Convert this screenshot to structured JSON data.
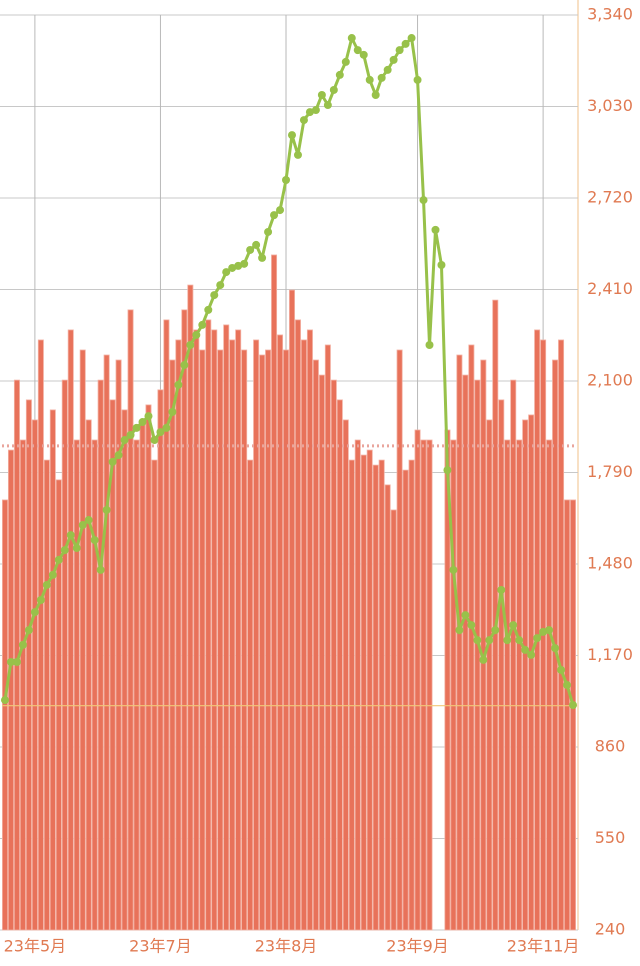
{
  "chart_data": {
    "type": "bar",
    "categories": [
      null,
      null,
      null,
      null,
      null,
      "23年5月",
      null,
      null,
      null,
      null,
      null,
      null,
      null,
      null,
      null,
      null,
      null,
      null,
      null,
      null,
      null,
      null,
      null,
      null,
      null,
      null,
      "23年7月",
      null,
      null,
      null,
      null,
      null,
      null,
      null,
      null,
      null,
      null,
      null,
      null,
      null,
      null,
      null,
      null,
      null,
      null,
      null,
      null,
      "23年8月",
      null,
      null,
      null,
      null,
      null,
      null,
      null,
      null,
      null,
      null,
      null,
      null,
      null,
      null,
      null,
      null,
      null,
      null,
      null,
      null,
      null,
      "23年9月",
      null,
      null,
      null,
      null,
      null,
      null,
      null,
      null,
      null,
      null,
      null,
      null,
      null,
      null,
      null,
      null,
      null,
      null,
      null,
      null,
      "23年11月",
      null,
      null,
      null,
      null,
      null
    ],
    "series": [
      {
        "type": "bar",
        "color": "#e8725a",
        "values": [
          1697,
          1866,
          2103,
          1900,
          2036,
          1968,
          2239,
          1832,
          2002,
          1765,
          2103,
          2273,
          1900,
          2205,
          1968,
          1900,
          2103,
          2188,
          2036,
          2171,
          2002,
          2341,
          1900,
          1968,
          2019,
          1832,
          2070,
          2307,
          2171,
          2239,
          2341,
          2425,
          2273,
          2205,
          2307,
          2273,
          2205,
          2290,
          2239,
          2273,
          2205,
          1832,
          2239,
          2188,
          2205,
          2527,
          2256,
          2205,
          2408,
          2307,
          2239,
          2273,
          2171,
          2120,
          2222,
          2103,
          2036,
          1968,
          1832,
          1900,
          1849,
          1866,
          1815,
          1832,
          1748,
          1663,
          2205,
          1798,
          1832,
          1934,
          1900,
          1900,
          null,
          null,
          1934,
          1900,
          2188,
          2120,
          2222,
          2103,
          2171,
          1968,
          2374,
          2036,
          1900,
          2103,
          1900,
          1968,
          1985,
          2273,
          2239,
          1900,
          2171,
          2239,
          1697,
          1697
        ]
      },
      {
        "type": "line",
        "color": "#98c14a",
        "values": [
          1019,
          1148,
          1148,
          1206,
          1256,
          1317,
          1358,
          1409,
          1443,
          1494,
          1527,
          1578,
          1534,
          1612,
          1629,
          1561,
          1460,
          1663,
          1826,
          1849,
          1900,
          1917,
          1941,
          1961,
          1981,
          1900,
          1927,
          1941,
          1995,
          2087,
          2154,
          2222,
          2256,
          2290,
          2341,
          2391,
          2425,
          2469,
          2483,
          2490,
          2497,
          2544,
          2561,
          2517,
          2605,
          2662,
          2679,
          2781,
          2933,
          2866,
          2984,
          3011,
          3018,
          3069,
          3035,
          3086,
          3137,
          3181,
          3262,
          3221,
          3205,
          3120,
          3069,
          3127,
          3154,
          3188,
          3221,
          3242,
          3262,
          3120,
          2713,
          2222,
          2612,
          2493,
          1798,
          1460,
          1256,
          1307,
          1273,
          1222,
          1155,
          1222,
          1256,
          1392,
          1222,
          1273,
          1222,
          1189,
          1172,
          1229,
          1250,
          1256,
          1195,
          1121,
          1070,
          1002
        ]
      }
    ],
    "ylim": [
      240,
      3340
    ],
    "yticks": [
      240,
      550,
      860,
      {
        "value": 1170,
        "label": "1,170"
      },
      {
        "value": 1480,
        "label": "1,480"
      },
      {
        "value": 1790,
        "label": "1,790"
      },
      {
        "value": 2100,
        "label": "2,100"
      },
      {
        "value": 2410,
        "label": "2,410"
      },
      {
        "value": 2720,
        "label": "2,720"
      },
      {
        "value": 3030,
        "label": "3,030"
      },
      {
        "value": 3340,
        "label": "3,340"
      }
    ],
    "grid": true,
    "reference_lines": [
      {
        "value": 1880,
        "color": "#e9a59c",
        "style": "dotted"
      },
      {
        "value": 1000,
        "color": "#f2c878",
        "style": "solid"
      }
    ]
  }
}
